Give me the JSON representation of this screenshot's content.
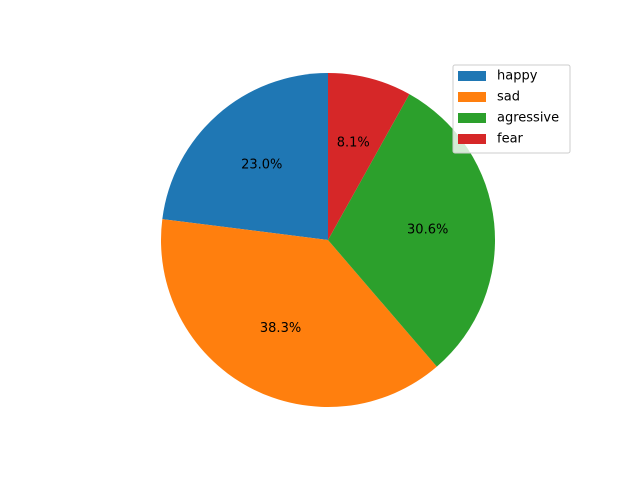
{
  "chart_data": {
    "type": "pie",
    "categories": [
      "happy",
      "sad",
      "agressive",
      "fear"
    ],
    "values": [
      23.0,
      38.3,
      30.6,
      8.1
    ],
    "labels": [
      "23.0%",
      "38.3%",
      "30.6%",
      "8.1%"
    ],
    "colors": [
      "#1f77b4",
      "#ff7f0e",
      "#2ca02c",
      "#d62728"
    ],
    "start_angle_deg": 90,
    "direction": "counterclockwise",
    "legend": {
      "placement": "upper right",
      "entries": [
        "happy",
        "sad",
        "agressive",
        "fear"
      ]
    },
    "title": ""
  }
}
